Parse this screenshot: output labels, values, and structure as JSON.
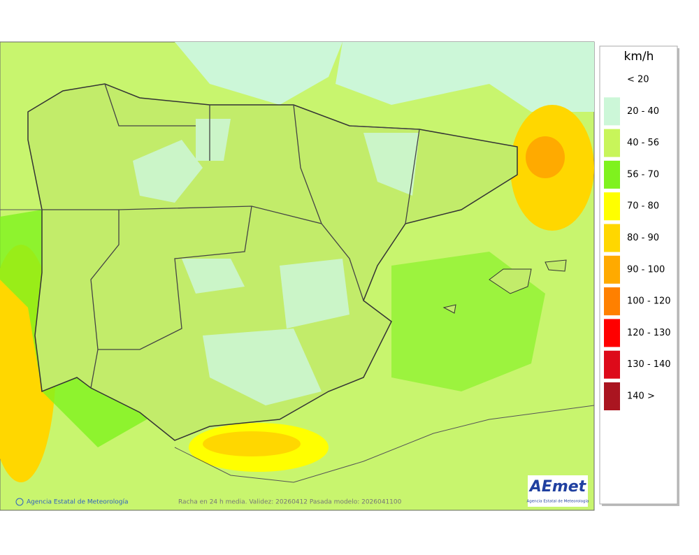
{
  "legend": {
    "unit": "km/h",
    "items": [
      {
        "label": "< 20",
        "color": "#ffffff"
      },
      {
        "label": "20 - 40",
        "color": "#ccf7d8"
      },
      {
        "label": "40 - 56",
        "color": "#c8f55a"
      },
      {
        "label": "56 - 70",
        "color": "#7ff21e"
      },
      {
        "label": "70 - 80",
        "color": "#ffff00"
      },
      {
        "label": "80 - 90",
        "color": "#ffd700"
      },
      {
        "label": "90 - 100",
        "color": "#ffaa00"
      },
      {
        "label": "100 - 120",
        "color": "#ff8000"
      },
      {
        "label": "120 - 130",
        "color": "#ff0000"
      },
      {
        "label": "130 - 140",
        "color": "#dd0a1a"
      },
      {
        "label": "140 >",
        "color": "#aa1520"
      }
    ]
  },
  "footer": {
    "agency": "Agencia Estatal de Meteorología",
    "caption": "Racha en 24 h media. Validez: 20260412 Pasada modelo: 2026041100"
  },
  "logo": {
    "name": "AEmet",
    "subtitle": "Agencia Estatal de Meteorología"
  }
}
